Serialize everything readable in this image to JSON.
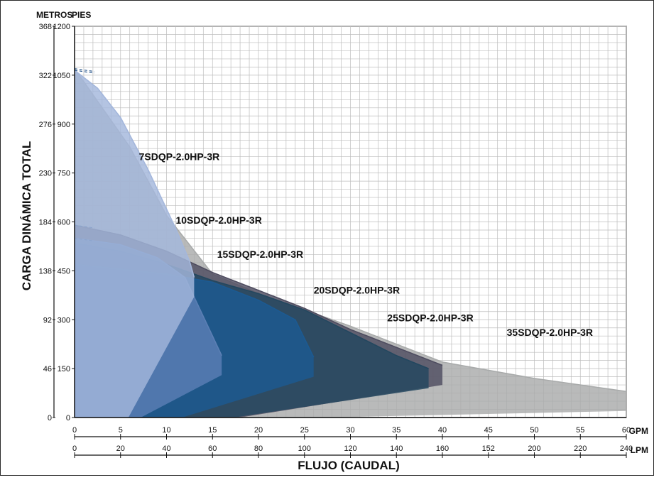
{
  "chart_data": {
    "type": "area",
    "title": "",
    "ylabel": "CARGA DINÁMICA TOTAL",
    "xlabel": "FLUJO (CAUDAL)",
    "y_unit_left": "METROS",
    "y_unit_right": "PIES",
    "x_unit_gpm": "GPM",
    "x_unit_lpm": "LPM",
    "y_ticks_meters": [
      "0",
      "46",
      "92",
      "138",
      "184",
      "230",
      "276",
      "322",
      "368"
    ],
    "y_ticks_feet": [
      "0",
      "150",
      "300",
      "450",
      "600",
      "750",
      "900",
      "1050",
      "1200"
    ],
    "x_ticks_gpm": [
      "0",
      "5",
      "10",
      "15",
      "20",
      "25",
      "30",
      "35",
      "40",
      "45",
      "50",
      "55",
      "60"
    ],
    "x_ticks_lpm": [
      "0",
      "20",
      "40",
      "60",
      "80",
      "100",
      "120",
      "140",
      "160",
      "152",
      "200",
      "220",
      "240"
    ],
    "xlim_gpm": [
      0,
      60
    ],
    "ylim_feet": [
      0,
      1200
    ],
    "grid": true,
    "series": [
      {
        "name": "35SDQP-2.0HP-3R",
        "color": "#a9abab",
        "head_ft": 1070,
        "curve": [
          [
            0,
            1070
          ],
          [
            6,
            830
          ],
          [
            10,
            620
          ],
          [
            15,
            440
          ],
          [
            20,
            380
          ],
          [
            30,
            280
          ],
          [
            40,
            170
          ],
          [
            50,
            120
          ],
          [
            60,
            80
          ]
        ],
        "label_at": [
          47,
          250
        ]
      },
      {
        "name": "25SDQP-2.0HP-3R",
        "color": "#4f4d60",
        "head_ft": 590,
        "curve": [
          [
            0,
            590
          ],
          [
            5,
            560
          ],
          [
            10,
            510
          ],
          [
            15,
            445
          ],
          [
            20,
            390
          ],
          [
            25,
            335
          ],
          [
            30,
            270
          ],
          [
            35,
            215
          ],
          [
            40,
            160
          ]
        ],
        "label_at": [
          34,
          295
        ]
      },
      {
        "name": "20SDQP-2.0HP-3R",
        "color": "#23475f",
        "head_ft": 535,
        "curve": [
          [
            0,
            535
          ],
          [
            5,
            510
          ],
          [
            10,
            470
          ],
          [
            15,
            420
          ],
          [
            20,
            380
          ],
          [
            25,
            330
          ],
          [
            30,
            260
          ],
          [
            35,
            190
          ],
          [
            38.5,
            150
          ]
        ],
        "label_at": [
          26,
          380
        ]
      },
      {
        "name": "15SDQP-2.0HP-3R",
        "color": "#1c5a92",
        "head_ft": 470,
        "curve": [
          [
            0,
            470
          ],
          [
            5,
            455
          ],
          [
            10,
            440
          ],
          [
            15,
            415
          ],
          [
            20,
            360
          ],
          [
            24,
            300
          ],
          [
            26,
            185
          ]
        ],
        "label_at": [
          15.5,
          490
        ]
      },
      {
        "name": "10SDQP-2.0HP-3R",
        "color": "#5b7fb4",
        "head_ft": 550,
        "curve": [
          [
            0,
            550
          ],
          [
            5,
            530
          ],
          [
            9,
            490
          ],
          [
            12,
            430
          ],
          [
            15,
            250
          ],
          [
            16,
            190
          ]
        ],
        "label_at": [
          11,
          595
        ]
      },
      {
        "name": "7SDQP-2.0HP-3R",
        "color": "#a4b7dc",
        "head_ft": 1065,
        "curve": [
          [
            0,
            1065
          ],
          [
            2.5,
            1010
          ],
          [
            5,
            920
          ],
          [
            8,
            760
          ],
          [
            11,
            580
          ],
          [
            12.5,
            480
          ],
          [
            13,
            430
          ]
        ],
        "label_at": [
          7,
          790
        ]
      }
    ]
  }
}
